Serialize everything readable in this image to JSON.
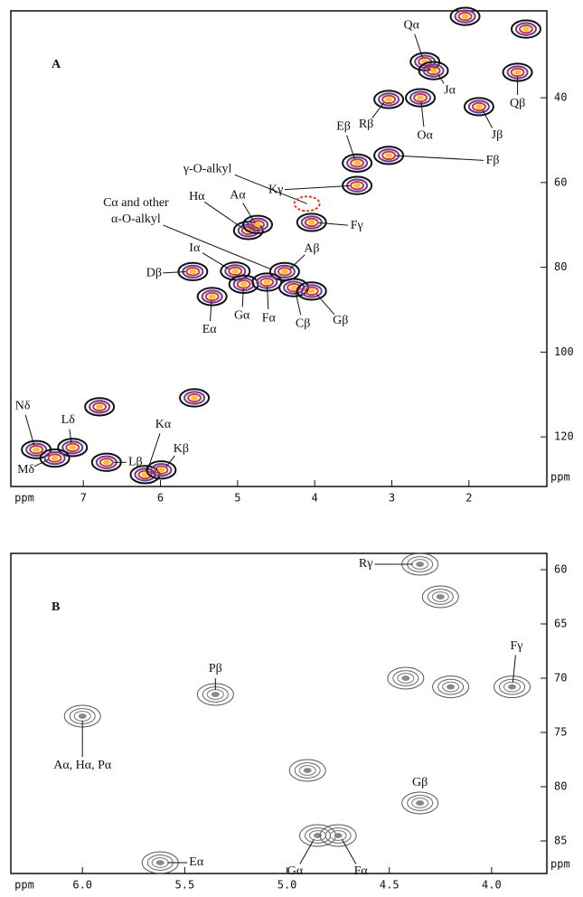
{
  "chart_data": [
    {
      "type": "contour",
      "label": "A",
      "xlabel": "ppm",
      "ylabel": "ppm",
      "xlim": [
        7.94,
        0.99
      ],
      "ylim": [
        19.5,
        131.7
      ],
      "xticks": [
        7,
        6,
        5,
        4,
        3,
        2
      ],
      "yticks": [
        40,
        60,
        80,
        100,
        120
      ],
      "colors": [
        "#111111",
        "#6a3a9a",
        "#d03a3a",
        "#f2c040"
      ],
      "peaks": [
        {
          "label": "Qα",
          "x": 2.57,
          "y": 31.5
        },
        {
          "label": null,
          "x": 2.05,
          "y": 20.8
        },
        {
          "label": null,
          "x": 1.26,
          "y": 23.8
        },
        {
          "label": "Qβ",
          "x": 1.37,
          "y": 34
        },
        {
          "label": "Jα",
          "x": 2.46,
          "y": 33.6
        },
        {
          "label": "Jβ",
          "x": 1.87,
          "y": 42.1
        },
        {
          "label": "Rβ",
          "x": 3.04,
          "y": 40.4
        },
        {
          "label": "Oα",
          "x": 2.63,
          "y": 40
        },
        {
          "label": "Eβ",
          "x": 3.45,
          "y": 55.4
        },
        {
          "label": "Fβ",
          "x": 3.04,
          "y": 53.6
        },
        {
          "label": "Kγ",
          "x": 3.45,
          "y": 60.7
        },
        {
          "label": "Fγ",
          "x": 4.04,
          "y": 69.4
        },
        {
          "label": "Hα",
          "x": 4.86,
          "y": 71.3
        },
        {
          "label": "Aα",
          "x": 4.74,
          "y": 69.9
        },
        {
          "label": "Iα",
          "x": 5.03,
          "y": 80.9
        },
        {
          "label": "Dβ",
          "x": 5.58,
          "y": 81
        },
        {
          "label": "Aβ",
          "x": 4.39,
          "y": 81
        },
        {
          "label": "Gα",
          "x": 4.92,
          "y": 84
        },
        {
          "label": "Fα",
          "x": 4.62,
          "y": 83.5
        },
        {
          "label": "Cβ",
          "x": 4.27,
          "y": 84.8
        },
        {
          "label": "Gβ",
          "x": 4.04,
          "y": 85.6
        },
        {
          "label": "Eα",
          "x": 5.33,
          "y": 86.9
        },
        {
          "label": null,
          "x": 6.79,
          "y": 112.9
        },
        {
          "label": null,
          "x": 5.56,
          "y": 110.8
        },
        {
          "label": "Nδ",
          "x": 7.61,
          "y": 123
        },
        {
          "label": "Lδ",
          "x": 7.14,
          "y": 122.5
        },
        {
          "label": "Mδ",
          "x": 7.37,
          "y": 125
        },
        {
          "label": "Lβ",
          "x": 6.7,
          "y": 126
        },
        {
          "label": "Kα",
          "x": 6.2,
          "y": 128.9
        },
        {
          "label": "Kβ",
          "x": 5.99,
          "y": 127.8
        }
      ],
      "annotations": [
        {
          "lines": [
            "γ-O-alkyl"
          ],
          "x": 4.1,
          "y": 65,
          "circle_color": "#e04020"
        },
        {
          "lines": [
            "Cα and other",
            "α-O-alkyl"
          ],
          "x": 4.56,
          "y": 80.5
        }
      ]
    },
    {
      "type": "contour",
      "label": "B",
      "xlabel": "ppm",
      "ylabel": "ppm",
      "xlim": [
        6.35,
        3.73
      ],
      "ylim": [
        58.5,
        88
      ],
      "xticks": [
        {
          "value": 6,
          "label": "6.0"
        },
        5.5,
        {
          "value": 5,
          "label": "5.0"
        },
        4.5,
        {
          "value": 4,
          "label": "4.0"
        }
      ],
      "yticks": [
        60,
        65,
        70,
        75,
        80,
        85
      ],
      "colors": [
        "#555555",
        "#666666",
        "#777777",
        "#888888"
      ],
      "peaks": [
        {
          "label": "Rγ",
          "x": 4.35,
          "y": 59.5
        },
        {
          "label": null,
          "x": 4.25,
          "y": 62.5
        },
        {
          "label": null,
          "x": 4.42,
          "y": 70
        },
        {
          "label": null,
          "x": 4.2,
          "y": 70.8
        },
        {
          "label": "Fγ",
          "x": 3.9,
          "y": 70.8
        },
        {
          "label": "Pβ",
          "x": 5.35,
          "y": 71.5
        },
        {
          "label": "Aα, Hα, Pα",
          "x": 6.0,
          "y": 73.5
        },
        {
          "label": null,
          "x": 4.9,
          "y": 78.5
        },
        {
          "label": "Gβ",
          "x": 4.35,
          "y": 81.5
        },
        {
          "label": "Gα",
          "x": 4.85,
          "y": 84.5
        },
        {
          "label": "Fα",
          "x": 4.75,
          "y": 84.5
        },
        {
          "label": "Eα",
          "x": 5.62,
          "y": 87
        }
      ],
      "annotations": []
    }
  ]
}
